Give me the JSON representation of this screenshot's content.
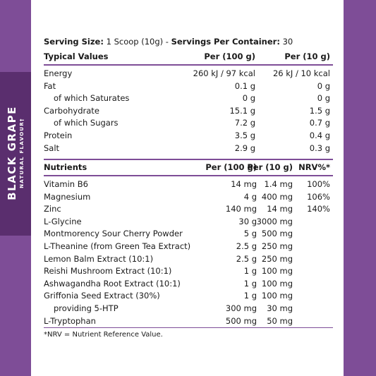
{
  "flavour": {
    "name": "BLACK GRAPE",
    "sub": "NATURAL FLAVOUR†"
  },
  "serving": {
    "size_label": "Serving Size:",
    "size_value": " 1 Scoop (10g)  -  ",
    "servings_label": "Servings Per Container:",
    "servings_value": " 30"
  },
  "typical": {
    "headers": [
      "Typical Values",
      "Per (100 g)",
      "Per (10 g)"
    ],
    "rows": [
      [
        "Energy",
        "260 kJ / 97 kcal",
        "26 kJ / 10 kcal"
      ],
      [
        "Fat",
        "0.1 g",
        "0 g"
      ],
      [
        "of which Saturates",
        "0 g",
        "0 g"
      ],
      [
        "Carbohydrate",
        "15.1 g",
        "1.5 g"
      ],
      [
        "of which Sugars",
        "7.2 g",
        "0.7 g"
      ],
      [
        "Protein",
        "3.5 g",
        "0.4 g"
      ],
      [
        "Salt",
        "2.9 g",
        "0.3 g"
      ]
    ]
  },
  "nutrients": {
    "headers": [
      "Nutrients",
      "Per (100 g)",
      "Per (10 g)",
      "NRV%*"
    ],
    "rows": [
      [
        "Vitamin B6",
        "14 mg",
        "1.4 mg",
        "100%"
      ],
      [
        "Magnesium",
        "4 g",
        "400 mg",
        "106%"
      ],
      [
        "Zinc",
        "140 mg",
        "14 mg",
        "140%"
      ],
      [
        "L-Glycine",
        "30 g",
        "3000 mg",
        ""
      ],
      [
        "Montmorency Sour Cherry Powder",
        "5 g",
        "500 mg",
        ""
      ],
      [
        "L-Theanine (from Green Tea Extract)",
        "2.5 g",
        "250 mg",
        ""
      ],
      [
        "Lemon Balm Extract (10:1)",
        "2.5 g",
        "250 mg",
        ""
      ],
      [
        "Reishi Mushroom Extract (10:1)",
        "1 g",
        "100 mg",
        ""
      ],
      [
        "Ashwagandha Root Extract (10:1)",
        "1 g",
        "100 mg",
        ""
      ],
      [
        "Griffonia Seed Extract (30%)",
        "1 g",
        "100 mg",
        ""
      ],
      [
        "providing 5-HTP",
        "300 mg",
        "30 mg",
        ""
      ],
      [
        "L-Tryptophan",
        "500 mg",
        "50 mg",
        ""
      ]
    ]
  },
  "footnote": "*NRV = Nutrient Reference Value."
}
